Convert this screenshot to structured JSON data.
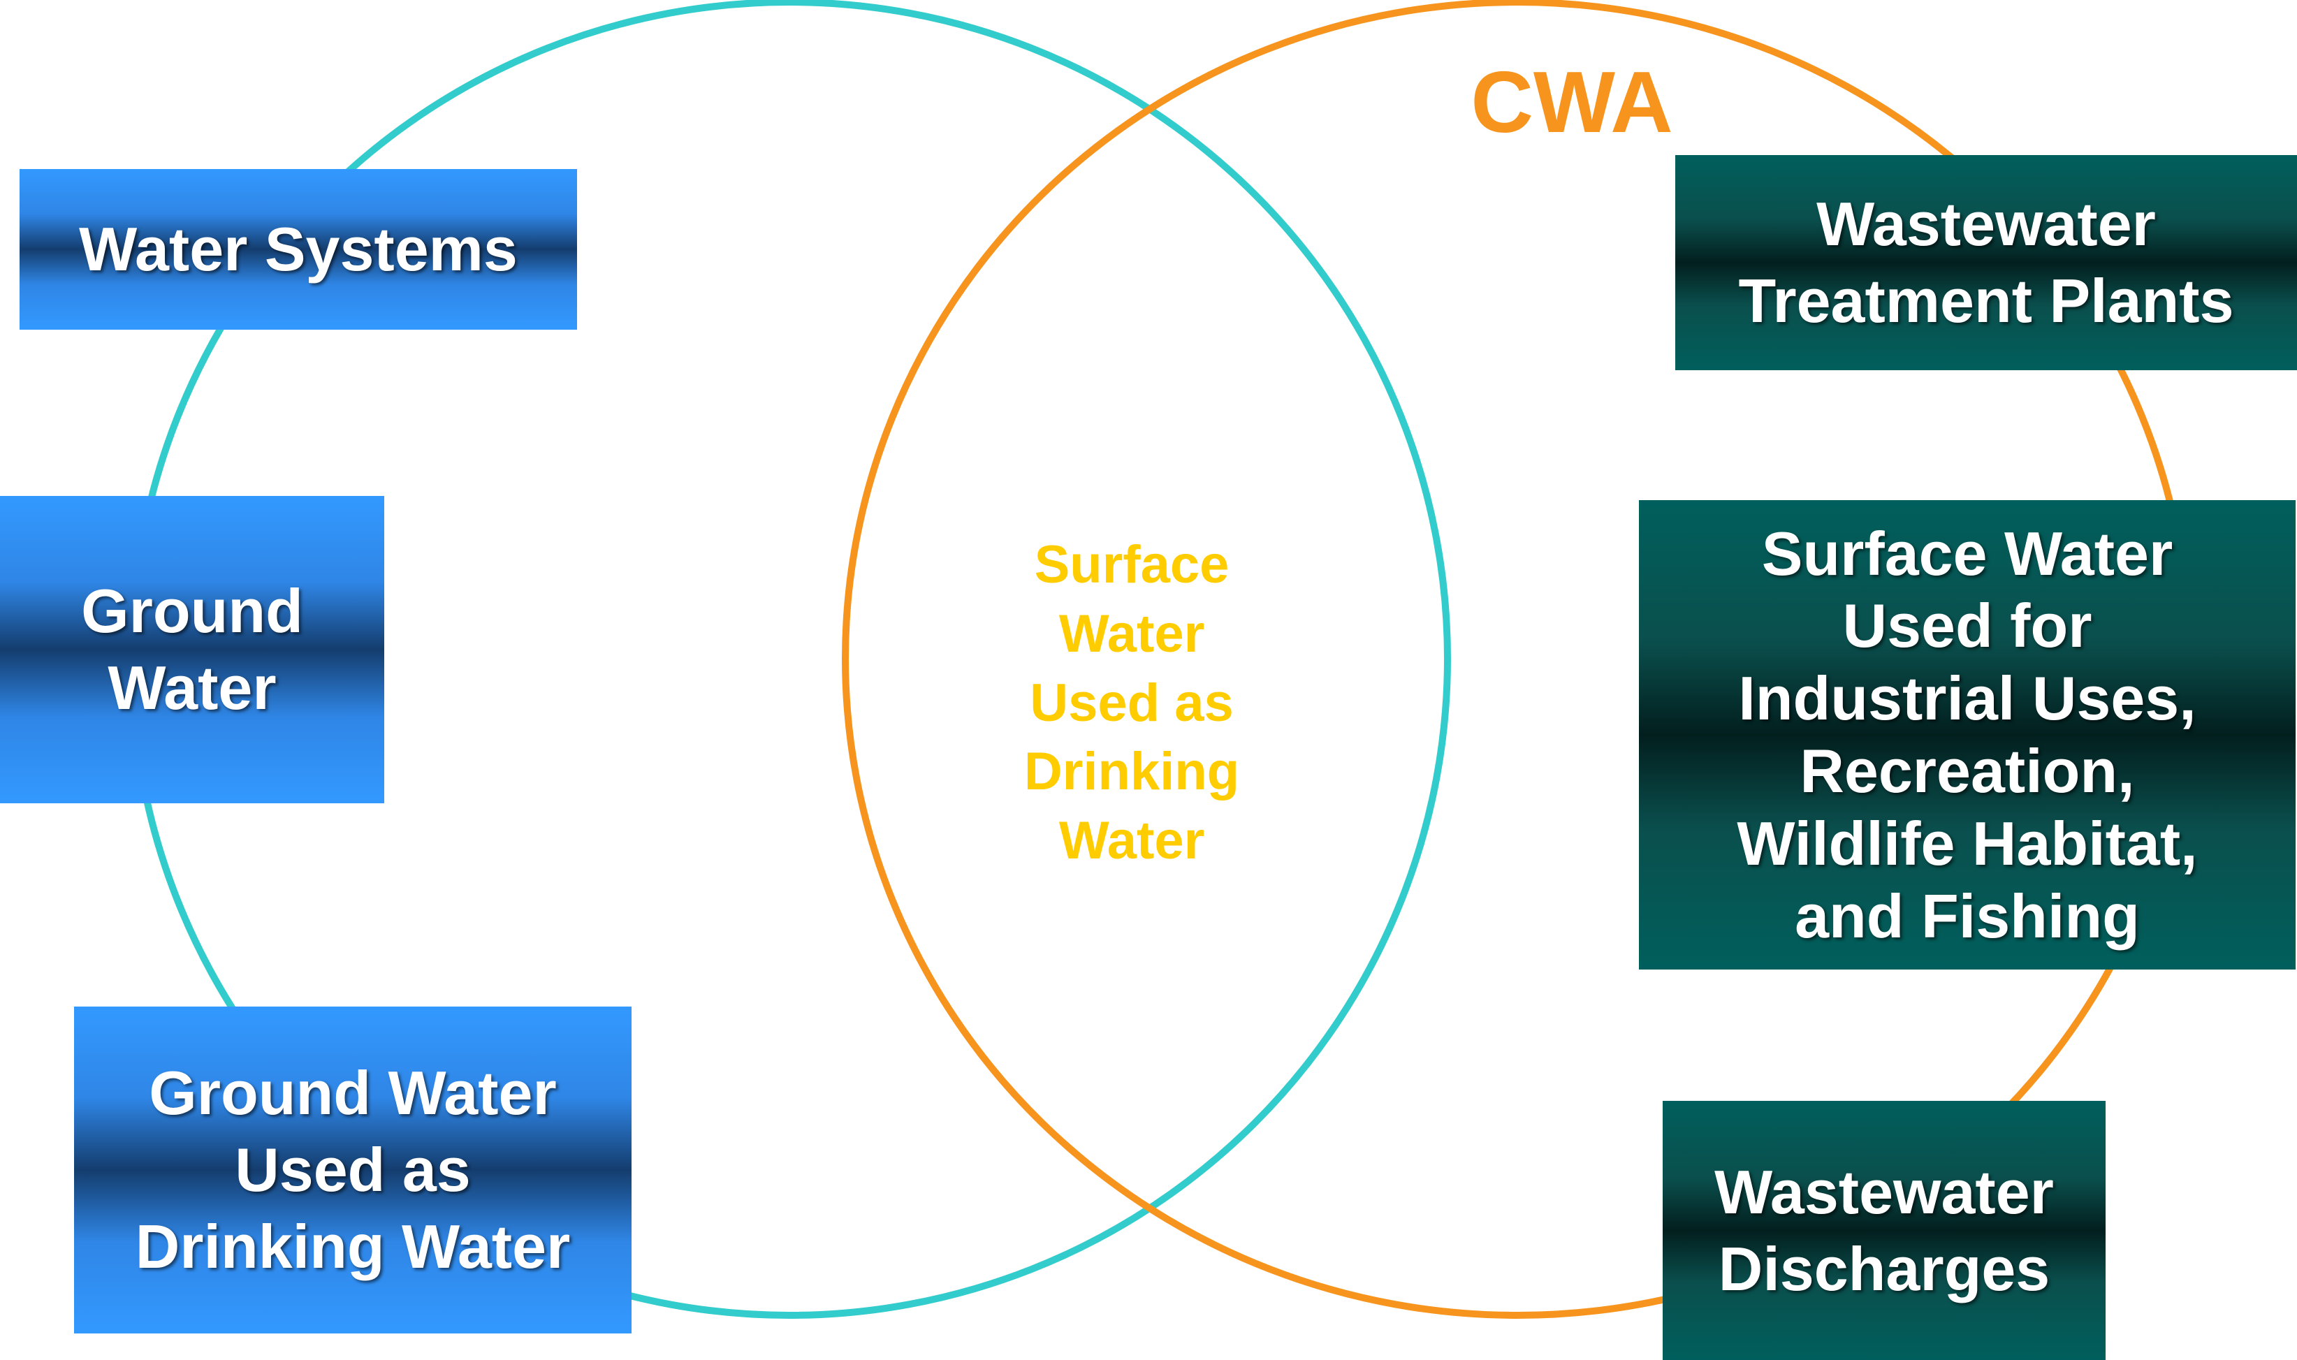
{
  "diagram": {
    "circle_left": {
      "stroke": "#33cccc"
    },
    "circle_right": {
      "stroke": "#f7941d",
      "label": "CWA"
    },
    "overlap_label": "Surface\nWater\nUsed as\nDrinking\nWater",
    "left_items": [
      "Water Systems",
      "Ground\nWater",
      "Ground Water\nUsed as\nDrinking Water"
    ],
    "right_items": [
      "Wastewater\nTreatment Plants",
      "Surface Water\nUsed for\nIndustrial Uses,\nRecreation,\nWildlife Habitat,\nand Fishing",
      "Wastewater\nDischarges"
    ],
    "colors": {
      "left_box": "#3399ff",
      "right_box": "#005f5c",
      "overlap_text": "#ffcc00",
      "right_label": "#f7941d"
    }
  }
}
